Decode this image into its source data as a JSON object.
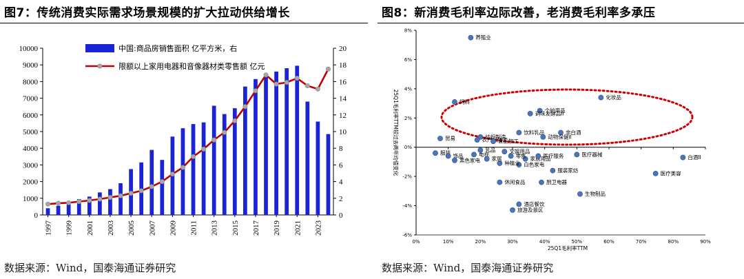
{
  "left": {
    "title": "图7：传统消费实际需求场景规模的扩大拉动供给增长",
    "source": "数据来源：Wind，国泰海通证券研究"
  },
  "right": {
    "title": "图8：新消费毛利率边际改善，老消费毛利率多承压",
    "source": "数据来源：Wind，国泰海通证券研究"
  },
  "colors": {
    "bar": "#1a23d6",
    "line": "#c00000",
    "marker": "#a6a6a6",
    "point": "#4a76b8",
    "ellipse": "#cc0000"
  },
  "chart_data": [
    {
      "type": "bar+line",
      "title": "传统消费实际需求场景规模的扩大拉动供给增长",
      "x": [
        "1997",
        "1998",
        "1999",
        "2000",
        "2001",
        "2002",
        "2003",
        "2004",
        "2005",
        "2006",
        "2007",
        "2008",
        "2009",
        "2010",
        "2011",
        "2012",
        "2013",
        "2014",
        "2015",
        "2016",
        "2017",
        "2018",
        "2019",
        "2020",
        "2021",
        "2022",
        "2023",
        "2024"
      ],
      "x_tick_labels": [
        "1997",
        "1999",
        "2001",
        "2003",
        "2005",
        "2007",
        "2009",
        "2011",
        "2013",
        "2015",
        "2017",
        "2019",
        "2021",
        "2023"
      ],
      "series": [
        {
          "name": "中国:商品房销售面积 亿平方米，右",
          "type": "bar",
          "axis": "right",
          "values": [
            0.8,
            1.1,
            1.3,
            1.9,
            2.2,
            2.7,
            3.1,
            3.8,
            5.5,
            6.3,
            7.8,
            6.6,
            9.4,
            10.4,
            10.9,
            11.1,
            13.1,
            12.1,
            12.8,
            15.4,
            16.3,
            16.9,
            17.2,
            17.6,
            17.9,
            13.6,
            11.2,
            9.7
          ]
        },
        {
          "name": "限额以上家用电器和音像器材类零售额 亿元",
          "type": "line",
          "axis": "left",
          "values": [
            650,
            700,
            730,
            800,
            870,
            950,
            1050,
            1150,
            1300,
            1450,
            1700,
            2000,
            2450,
            2850,
            3500,
            3950,
            4500,
            4950,
            5650,
            6500,
            7450,
            8400,
            7850,
            7950,
            8200,
            7750,
            7550,
            8750
          ]
        }
      ],
      "y_left": {
        "min": 0,
        "max": 10000,
        "ticks": [
          "0",
          "1000",
          "2000",
          "3000",
          "4000",
          "5000",
          "6000",
          "7000",
          "8000",
          "9000",
          "10000"
        ]
      },
      "y_right": {
        "min": 0,
        "max": 20,
        "ticks": [
          "0",
          "2",
          "4",
          "6",
          "8",
          "10",
          "12",
          "14",
          "16",
          "18",
          "20"
        ]
      },
      "legend": [
        "中国:商品房销售面积 亿平方米，右",
        "限额以上家用电器和音像器材类零售额 亿元"
      ]
    },
    {
      "type": "scatter",
      "title": "新消费毛利率边际改善，老消费毛利率多承压",
      "xlabel": "25Q1毛利率TTM",
      "ylabel": "25Q1毛利率TTM较过去两年均值变化",
      "xlim": [
        0,
        0.9
      ],
      "ylim": [
        -0.06,
        0.08
      ],
      "x_ticks": [
        "0%",
        "10%",
        "20%",
        "30%",
        "40%",
        "50%",
        "60%",
        "70%",
        "80%",
        "90%"
      ],
      "y_ticks": [
        "-6%",
        "-4%",
        "-2%",
        "0%",
        "2%",
        "4%",
        "6%",
        "8%"
      ],
      "points": [
        {
          "label": "养殖业",
          "x": 0.17,
          "y": 0.075
        },
        {
          "label": "饲料",
          "x": 0.12,
          "y": 0.031
        },
        {
          "label": "化妆品",
          "x": 0.575,
          "y": 0.034
        },
        {
          "label": "个护用品",
          "x": 0.385,
          "y": 0.025
        },
        {
          "label": "调味发酵品II",
          "x": 0.355,
          "y": 0.023
        },
        {
          "label": "饮料乳品",
          "x": 0.32,
          "y": 0.01
        },
        {
          "label": "非白酒",
          "x": 0.45,
          "y": 0.01
        },
        {
          "label": "动物保健II",
          "x": 0.395,
          "y": 0.007
        },
        {
          "label": "纺织制造",
          "x": 0.2,
          "y": 0.007
        },
        {
          "label": "农产品加工",
          "x": 0.19,
          "y": 0.005
        },
        {
          "label": "食品加工",
          "x": 0.24,
          "y": 0.004
        },
        {
          "label": "贸易",
          "x": 0.075,
          "y": 0.006
        },
        {
          "label": "服装",
          "x": 0.06,
          "y": -0.004
        },
        {
          "label": "医疗器械",
          "x": 0.5,
          "y": -0.005
        },
        {
          "label": "白酒II",
          "x": 0.83,
          "y": -0.007
        },
        {
          "label": "饰品",
          "x": 0.1,
          "y": -0.006
        },
        {
          "label": "黑色家电",
          "x": 0.12,
          "y": -0.009
        },
        {
          "label": "休闲食品",
          "x": 0.26,
          "y": -0.024
        },
        {
          "label": "白色家电",
          "x": 0.32,
          "y": -0.012
        },
        {
          "label": "服装家纺",
          "x": 0.425,
          "y": -0.016
        },
        {
          "label": "医疗美容",
          "x": 0.745,
          "y": -0.018
        },
        {
          "label": "厨卫电器",
          "x": 0.39,
          "y": -0.024
        },
        {
          "label": "生物制品",
          "x": 0.51,
          "y": -0.032
        },
        {
          "label": "酒店餐饮",
          "x": 0.32,
          "y": -0.039
        },
        {
          "label": "旅游及景区",
          "x": 0.3,
          "y": -0.043
        },
        {
          "label": "家居用品",
          "x": 0.34,
          "y": -0.008
        },
        {
          "label": "种植业",
          "x": 0.26,
          "y": -0.011
        },
        {
          "label": "医疗服务",
          "x": 0.38,
          "y": -0.006
        },
        {
          "label": "乳品",
          "x": 0.2,
          "y": -0.002
        },
        {
          "label": "电视",
          "x": 0.18,
          "y": -0.005
        },
        {
          "label": "零售",
          "x": 0.295,
          "y": -0.006
        },
        {
          "label": "文娱用品",
          "x": 0.275,
          "y": -0.003
        },
        {
          "label": "家居",
          "x": 0.22,
          "y": -0.008
        }
      ],
      "annotation": "red dotted ellipse around top-middle cluster"
    }
  ]
}
